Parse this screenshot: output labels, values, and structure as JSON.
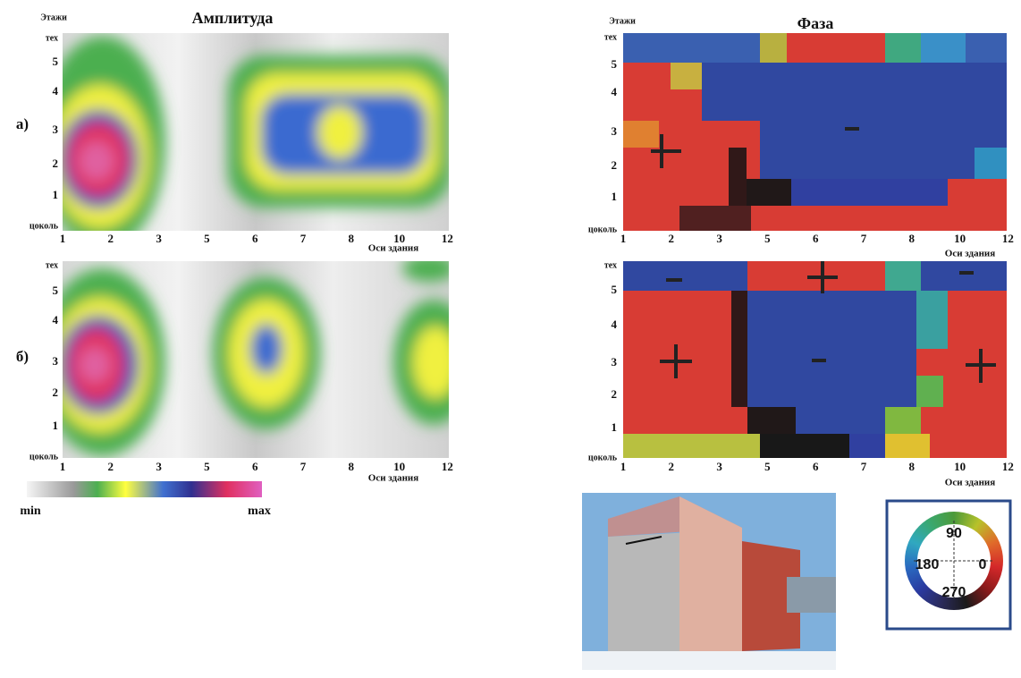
{
  "panels": {
    "a": "а)",
    "b": "б)"
  },
  "amplitude": {
    "title": "Амплитуда",
    "y_axis_title": "Этажи",
    "x_axis_title": "Оси здания",
    "x_ticks": [
      "1",
      "2",
      "3",
      "5",
      "6",
      "7",
      "8",
      "10",
      "12"
    ],
    "y_ticks": [
      "тех",
      "5",
      "4",
      "3",
      "2",
      "1",
      "цоколь"
    ]
  },
  "phase": {
    "title": "Фаза",
    "y_axis_title": "Этажи",
    "x_axis_title": "Оси здания",
    "x_ticks": [
      "1",
      "2",
      "3",
      "5",
      "6",
      "7",
      "8",
      "10",
      "12"
    ],
    "y_ticks": [
      "тех",
      "5",
      "4",
      "3",
      "2",
      "1",
      "цоколь"
    ]
  },
  "colorbar": {
    "min": "min",
    "max": "max"
  },
  "color_wheel": {
    "labels": [
      "90",
      "180",
      "0",
      "270"
    ]
  }
}
